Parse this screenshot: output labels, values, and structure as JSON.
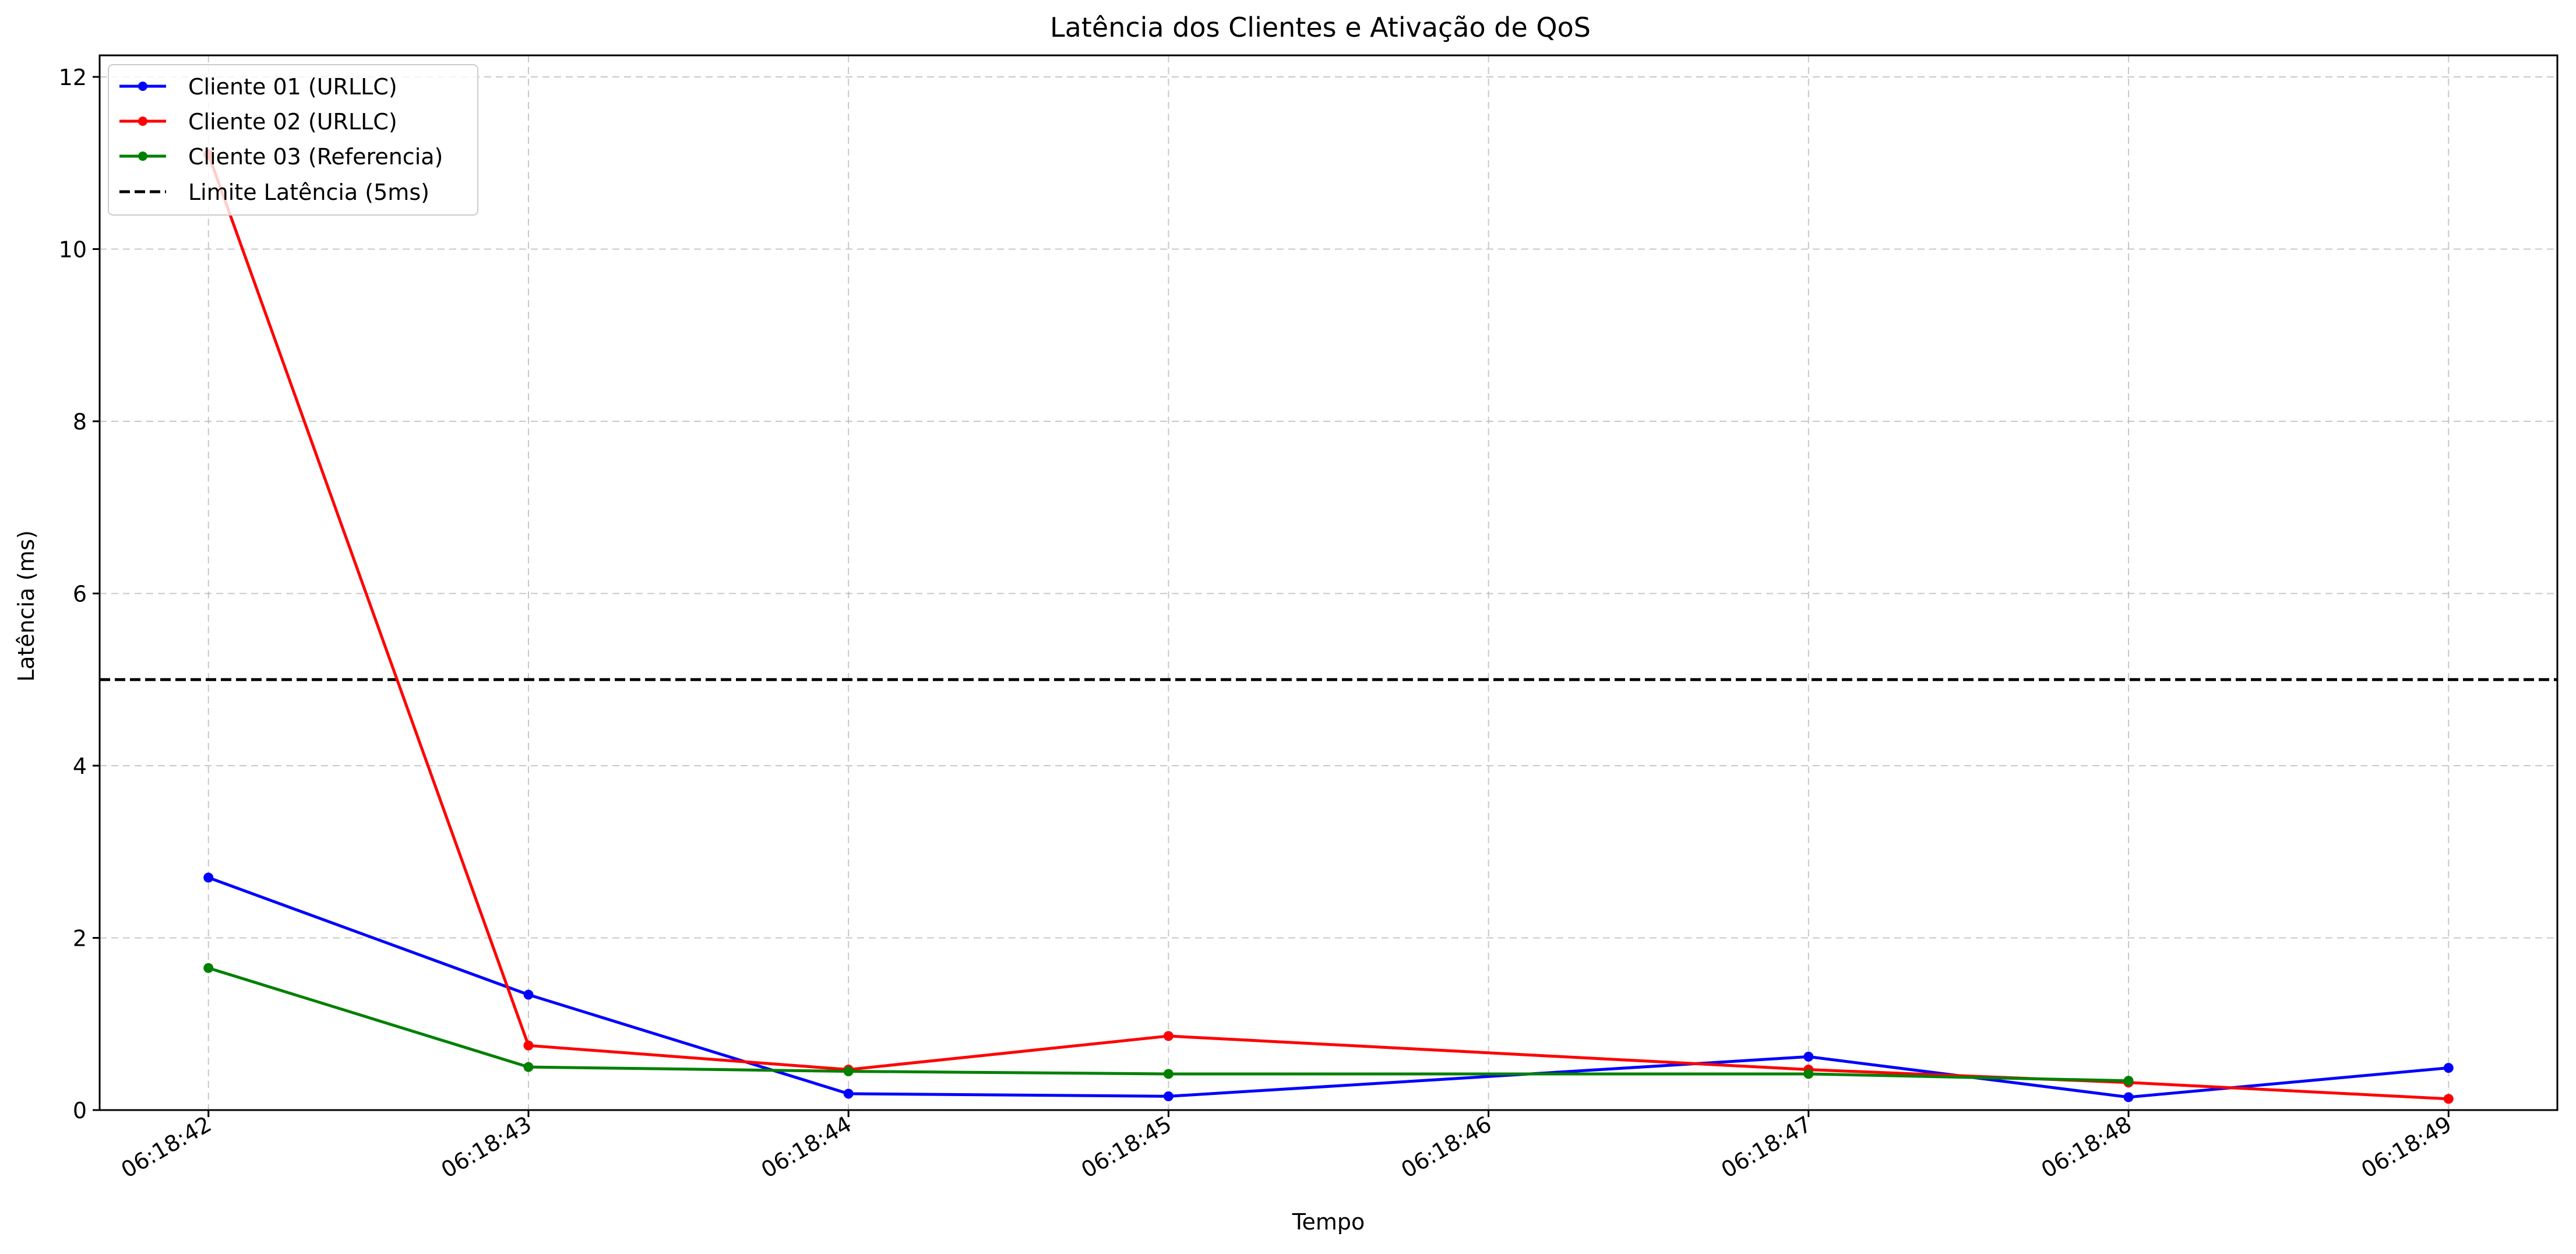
{
  "chart_data": {
    "type": "line",
    "title": "Latência dos Clientes e Ativação de QoS",
    "xlabel": "Tempo",
    "ylabel": "Latência (ms)",
    "x": [
      "06:18:42",
      "06:18:43",
      "06:18:44",
      "06:18:45",
      "06:18:47",
      "06:18:48",
      "06:18:49"
    ],
    "x_ticks": [
      "06:18:42",
      "06:18:43",
      "06:18:44",
      "06:18:45",
      "06:18:46",
      "06:18:47",
      "06:18:48",
      "06:18:49"
    ],
    "y_ticks": [
      0,
      2,
      4,
      6,
      8,
      10,
      12
    ],
    "ylim": [
      0,
      12.25
    ],
    "xlim": [
      "06:18:41.66",
      "06:18:49.34"
    ],
    "grid": true,
    "legend_position": "upper-left",
    "series": [
      {
        "name": "Cliente 01 (URLLC)",
        "color": "#0000ff",
        "marker": "dot",
        "values": [
          2.7,
          1.34,
          0.19,
          0.16,
          0.62,
          0.15,
          0.49
        ]
      },
      {
        "name": "Cliente 02 (URLLC)",
        "color": "#ff0000",
        "marker": "dot",
        "values": [
          11.1,
          0.75,
          0.47,
          0.86,
          0.47,
          0.32,
          0.13
        ]
      },
      {
        "name": "Cliente 03 (Referencia)",
        "color": "#008000",
        "marker": "dot",
        "values": [
          1.65,
          0.5,
          0.45,
          0.42,
          0.42,
          0.34,
          null
        ]
      }
    ],
    "reference_line": {
      "name": "Limite Latência (5ms)",
      "value": 5,
      "color": "#000000",
      "style": "dashed"
    }
  }
}
